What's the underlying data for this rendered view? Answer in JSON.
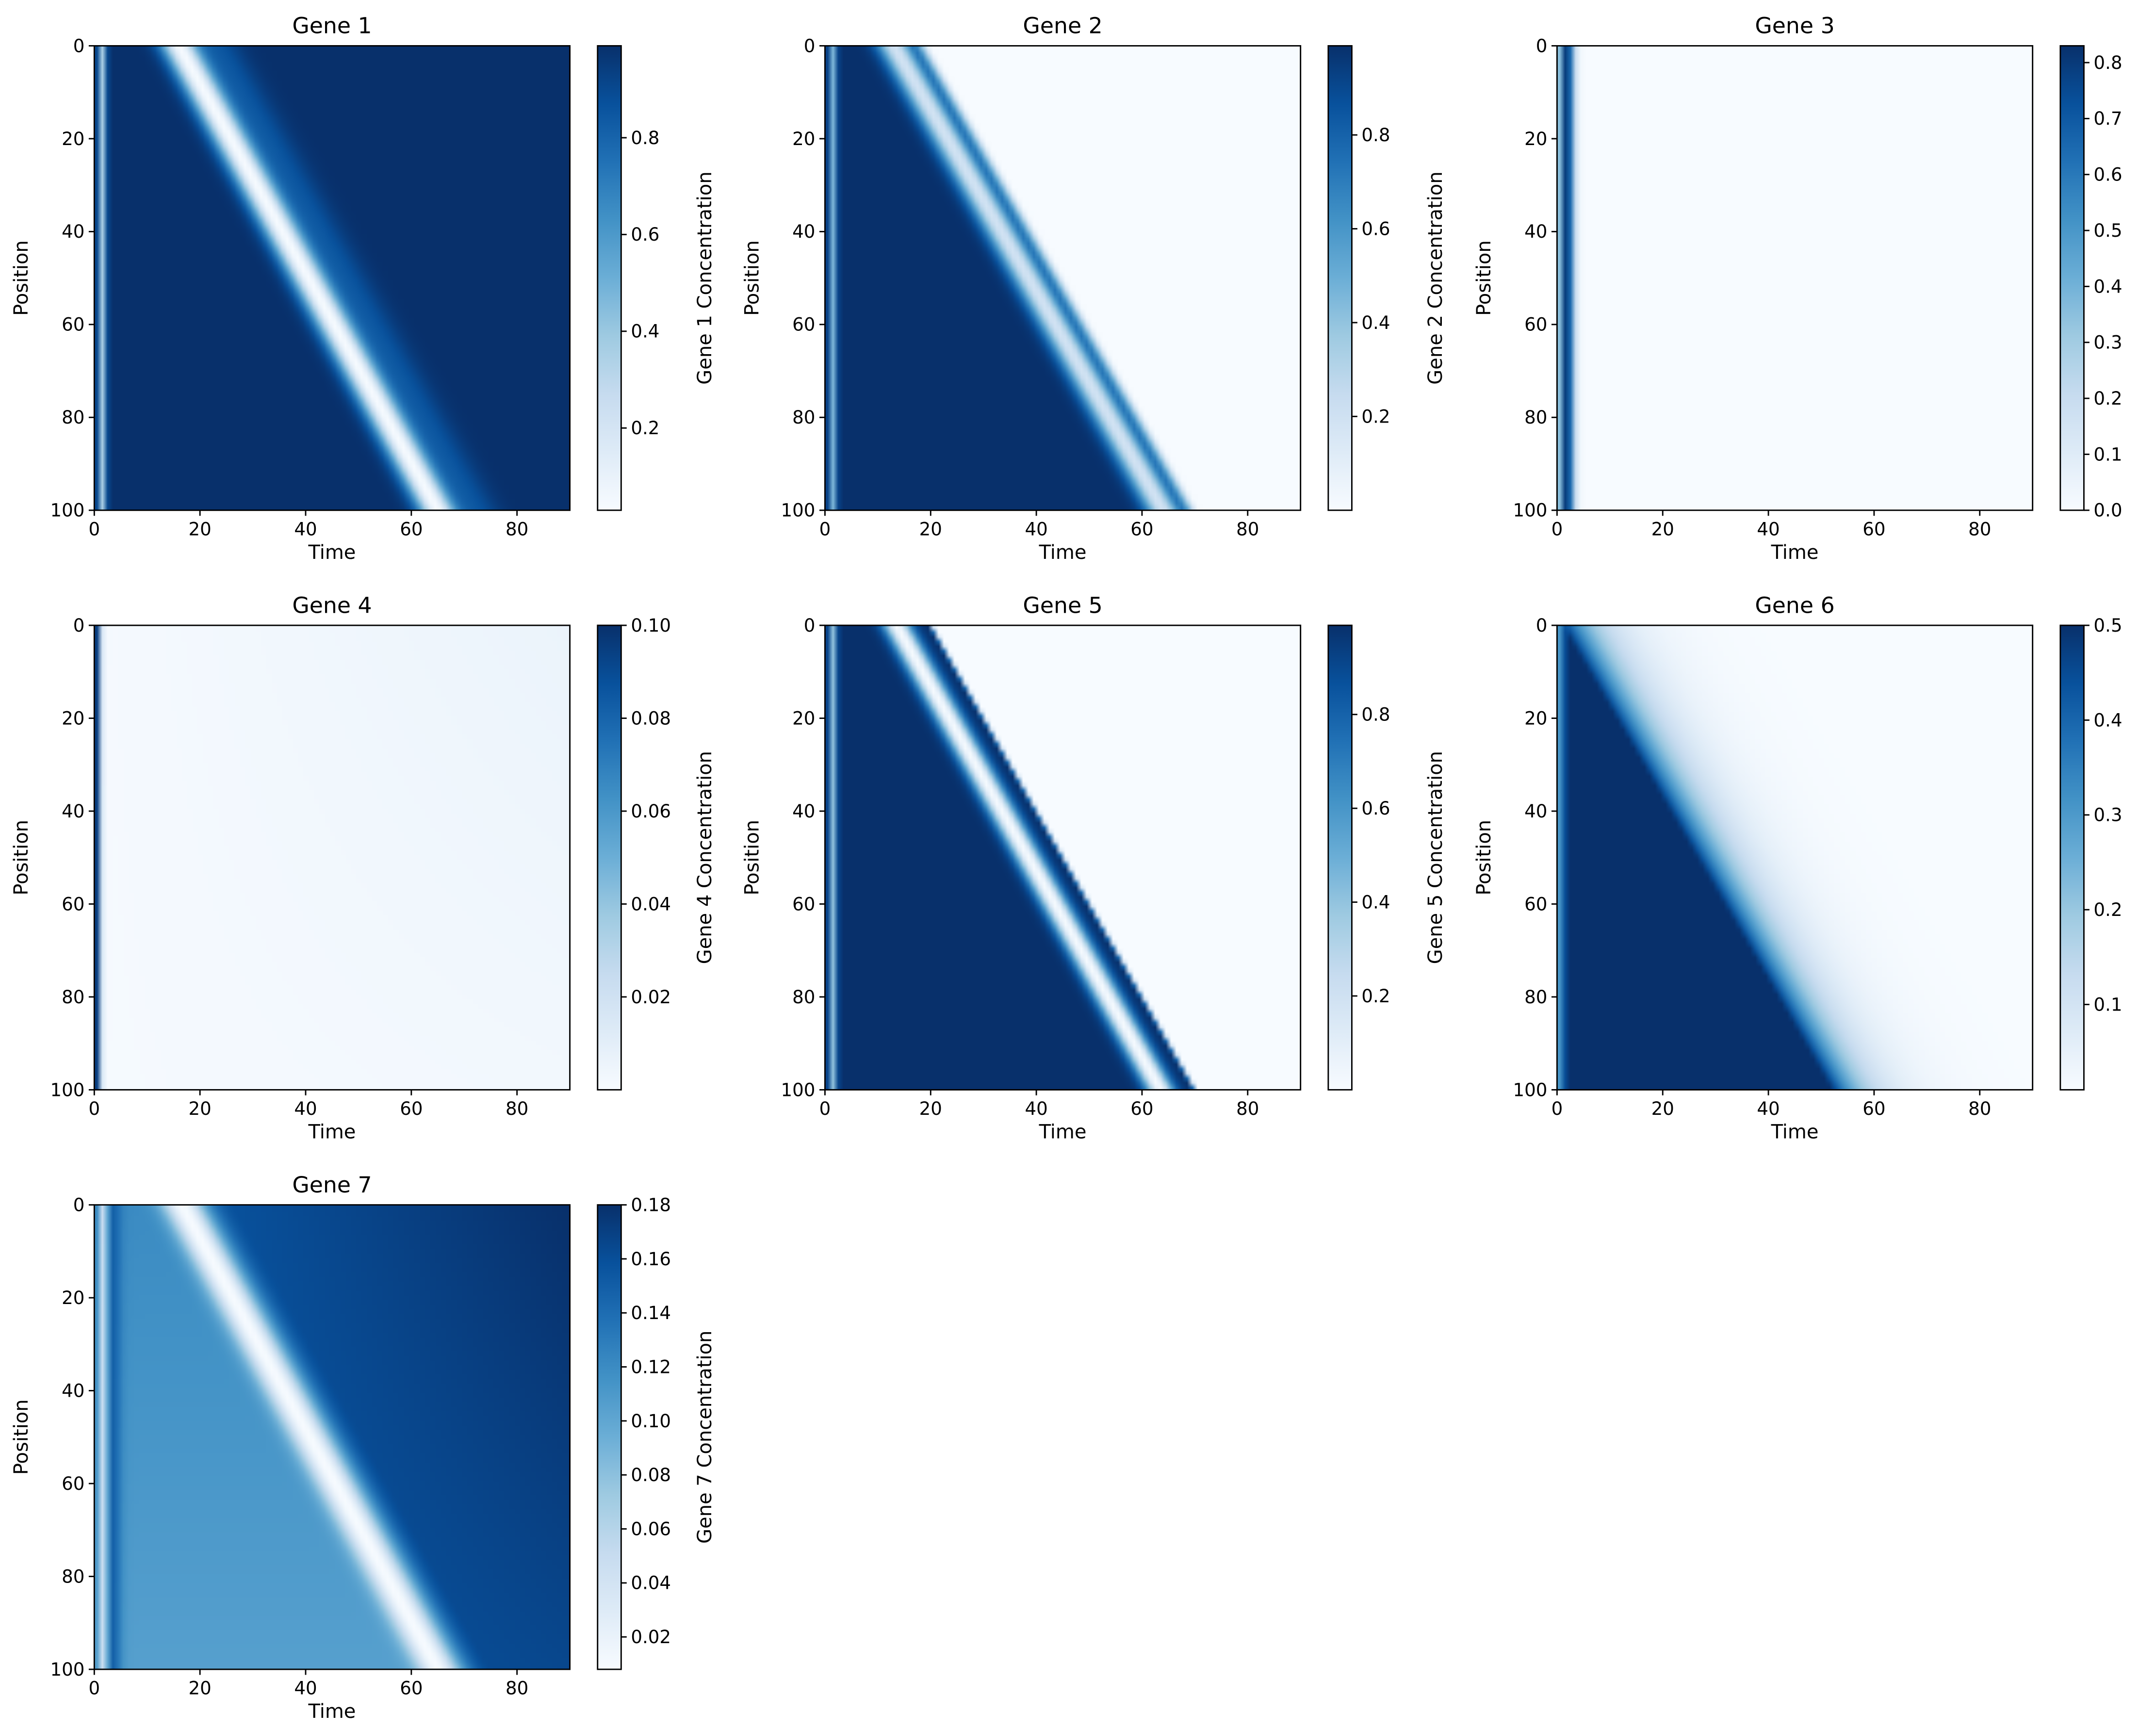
{
  "figure": {
    "columns": 3
  },
  "colormap": {
    "name": "Blues",
    "low": "#f7fbff",
    "high": "#08306b"
  },
  "chart_data": [
    {
      "type": "heatmap",
      "title": "Gene 1",
      "xlabel": "Time",
      "ylabel": "Position",
      "colorbar_label": "Gene 1 Concentration",
      "xlim": [
        0,
        90
      ],
      "ylim": [
        100,
        0
      ],
      "x_ticks": [
        0,
        20,
        40,
        60,
        80
      ],
      "y_ticks": [
        0,
        20,
        40,
        60,
        80,
        100
      ],
      "color_range": [
        0.03,
        0.99
      ],
      "colorbar_ticks": [
        "0.2",
        "0.4",
        "0.6",
        "0.8"
      ],
      "pattern": {
        "base": 0.99,
        "edge_time": 1.5,
        "edge_value": 0.35,
        "band_start_time": 16,
        "band_end_time": 65,
        "band_width": 2.4,
        "band_value": 0.03,
        "shadow_offset": 7,
        "shadow_width": 3,
        "shadow_value": 0.85
      }
    },
    {
      "type": "heatmap",
      "title": "Gene 2",
      "xlabel": "Time",
      "ylabel": "Position",
      "colorbar_label": "Gene 2 Concentration",
      "xlim": [
        0,
        90
      ],
      "ylim": [
        100,
        0
      ],
      "x_ticks": [
        0,
        20,
        40,
        60,
        80
      ],
      "y_ticks": [
        0,
        20,
        40,
        60,
        80,
        100
      ],
      "color_range": [
        0.0,
        0.99
      ],
      "colorbar_ticks": [
        "0.2",
        "0.4",
        "0.6",
        "0.8"
      ],
      "pattern": {
        "base": 0.99,
        "edge_time": 1.5,
        "edge_value": 0.45,
        "front_start_time": 18,
        "front_end_time": 69,
        "front_width": 4,
        "after_value": 0.0,
        "band_start_time": 13,
        "band_end_time": 64,
        "band_width": 2.2,
        "band_value": 0.18
      }
    },
    {
      "type": "heatmap",
      "title": "Gene 3",
      "xlabel": "Time",
      "ylabel": "Position",
      "colorbar_label": "Gene 3 Concentration",
      "xlim": [
        0,
        90
      ],
      "ylim": [
        100,
        0
      ],
      "x_ticks": [
        0,
        20,
        40,
        60,
        80
      ],
      "y_ticks": [
        0,
        20,
        40,
        60,
        80,
        100
      ],
      "color_range": [
        0.0,
        0.83
      ],
      "colorbar_ticks": [
        "0.0",
        "0.1",
        "0.2",
        "0.3",
        "0.4",
        "0.5",
        "0.6",
        "0.7",
        "0.8"
      ],
      "pattern": {
        "base": 0.0,
        "pulse_time": 1.8,
        "pulse_width": 1.0,
        "pulse_value": 0.83
      }
    },
    {
      "type": "heatmap",
      "title": "Gene 4",
      "xlabel": "Time",
      "ylabel": "Position",
      "colorbar_label": "Gene 4 Concentration",
      "xlim": [
        0,
        90
      ],
      "ylim": [
        100,
        0
      ],
      "x_ticks": [
        0,
        20,
        40,
        60,
        80
      ],
      "y_ticks": [
        0,
        20,
        40,
        60,
        80,
        100
      ],
      "color_range": [
        0.0,
        0.1
      ],
      "colorbar_ticks": [
        "0.02",
        "0.04",
        "0.06",
        "0.08",
        "0.10"
      ],
      "pattern": {
        "base": 0.001,
        "late_value": 0.006,
        "pulse_time": 0.3,
        "pulse_width": 0.6,
        "pulse_value": 0.1
      }
    },
    {
      "type": "heatmap",
      "title": "Gene 5",
      "xlabel": "Time",
      "ylabel": "Position",
      "colorbar_label": "Gene 5 Concentration",
      "xlim": [
        0,
        90
      ],
      "ylim": [
        100,
        0
      ],
      "x_ticks": [
        0,
        20,
        40,
        60,
        80
      ],
      "y_ticks": [
        0,
        20,
        40,
        60,
        80,
        100
      ],
      "color_range": [
        0.0,
        0.99
      ],
      "colorbar_ticks": [
        "0.2",
        "0.4",
        "0.6",
        "0.8"
      ],
      "pattern": {
        "base": 0.99,
        "edge_time": 1.5,
        "edge_value": 0.4,
        "front_start_time": 20,
        "front_end_time": 70,
        "front_width": 1.2,
        "after_value": 0.0,
        "band_start_time": 13.5,
        "band_end_time": 63.5,
        "band_width": 1.8,
        "band_value": 0.0
      }
    },
    {
      "type": "heatmap",
      "title": "Gene 6",
      "xlabel": "Time",
      "ylabel": "Position",
      "colorbar_label": "Gene 6 Concentration",
      "xlim": [
        0,
        90
      ],
      "ylim": [
        100,
        0
      ],
      "x_ticks": [
        0,
        20,
        40,
        60,
        80
      ],
      "y_ticks": [
        0,
        20,
        40,
        60,
        80,
        100
      ],
      "color_range": [
        0.01,
        0.5
      ],
      "colorbar_ticks": [
        "0.1",
        "0.2",
        "0.3",
        "0.4",
        "0.5"
      ],
      "pattern": {
        "base": 0.5,
        "edge_time": 0.8,
        "edge_value": 0.25,
        "front_start_time": 1,
        "front_end_time": 52,
        "front_width": 14,
        "after_value": 0.01
      }
    },
    {
      "type": "heatmap",
      "title": "Gene 7",
      "xlabel": "Time",
      "ylabel": "Position",
      "colorbar_label": "Gene 7 Concentration",
      "xlim": [
        0,
        90
      ],
      "ylim": [
        100,
        0
      ],
      "x_ticks": [
        0,
        20,
        40,
        60,
        80
      ],
      "y_ticks": [
        0,
        20,
        40,
        60,
        80,
        100
      ],
      "color_range": [
        0.008,
        0.18
      ],
      "colorbar_ticks": [
        "0.02",
        "0.04",
        "0.06",
        "0.08",
        "0.10",
        "0.12",
        "0.14",
        "0.16",
        "0.18"
      ],
      "pattern": {
        "base": 0.12,
        "ramp_end_value": 0.105,
        "edge_time": 1.8,
        "edge_width": 1.0,
        "edge_value": 0.03,
        "pulse_time": 3.3,
        "pulse_width": 1.2,
        "pulse_value": 0.15,
        "band_start_time": 16.5,
        "band_end_time": 65,
        "band_width": 2.6,
        "band_value": 0.008,
        "after_start_value": 0.15,
        "after_end_value": 0.18
      }
    }
  ]
}
